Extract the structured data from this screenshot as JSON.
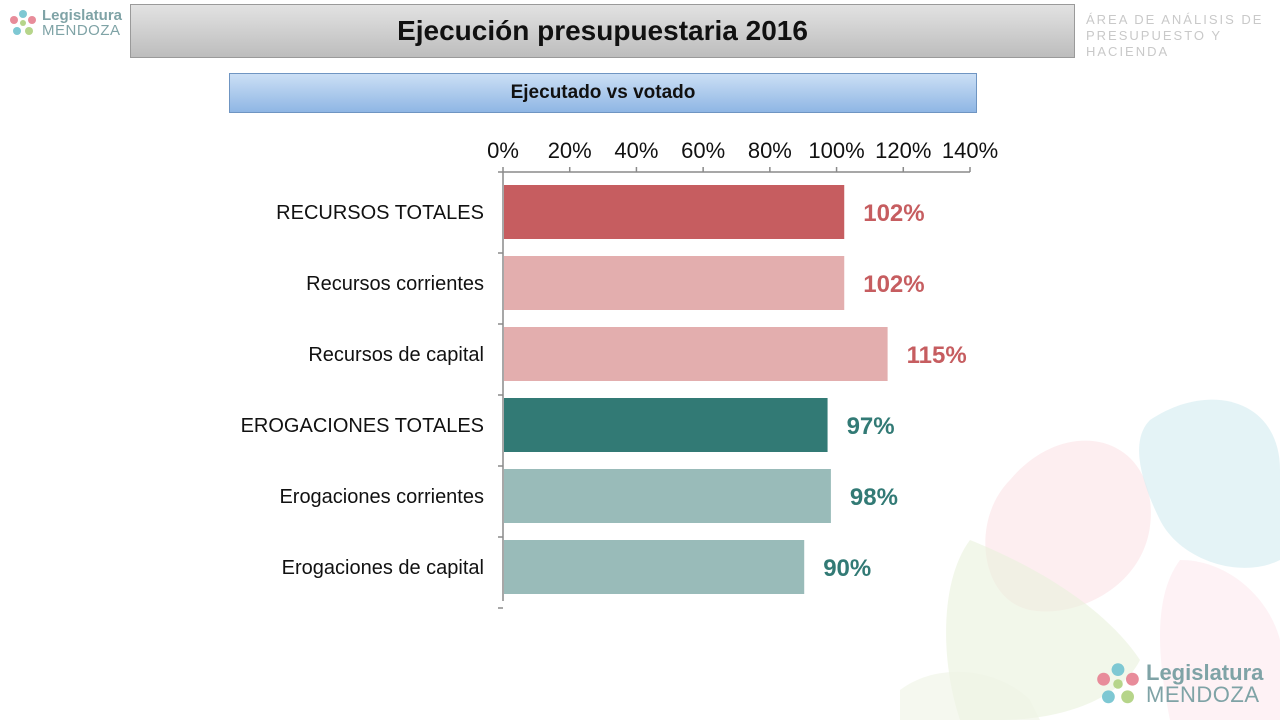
{
  "header": {
    "title": "Ejecución presupuestaria 2016",
    "area_line1": "ÁREA DE ANÁLISIS DE",
    "area_line2": "PRESUPUESTO Y HACIENDA"
  },
  "logo": {
    "line1": "Legislatura",
    "line2": "MENDOZA"
  },
  "subtitle": "Ejecutado vs votado",
  "colors": {
    "recursos_strong": "#c65d60",
    "recursos_light": "#e3aeae",
    "erogaciones_strong": "#327a75",
    "erogaciones_light": "#99bbb9"
  },
  "chart_data": {
    "type": "bar",
    "orientation": "horizontal",
    "title": "",
    "xlabel": "",
    "ylabel": "",
    "xlim": [
      0,
      1.4
    ],
    "x_axis_position": "top",
    "grid": false,
    "tick_labels": [
      "0%",
      "20%",
      "40%",
      "60%",
      "80%",
      "100%",
      "120%",
      "140%"
    ],
    "categories": [
      "RECURSOS TOTALES",
      "Recursos corrientes",
      "Recursos de capital",
      "EROGACIONES TOTALES",
      "Erogaciones corrientes",
      "Erogaciones de capital"
    ],
    "values": [
      1.02,
      1.02,
      1.15,
      0.97,
      0.98,
      0.9
    ],
    "data_labels": [
      "102%",
      "102%",
      "115%",
      "97%",
      "98%",
      "90%"
    ],
    "bar_colors": [
      "#c65d60",
      "#e3aeae",
      "#e3aeae",
      "#327a75",
      "#99bbb9",
      "#99bbb9"
    ],
    "label_colors": [
      "#c65d60",
      "#c65d60",
      "#c65d60",
      "#327a75",
      "#327a75",
      "#327a75"
    ]
  }
}
